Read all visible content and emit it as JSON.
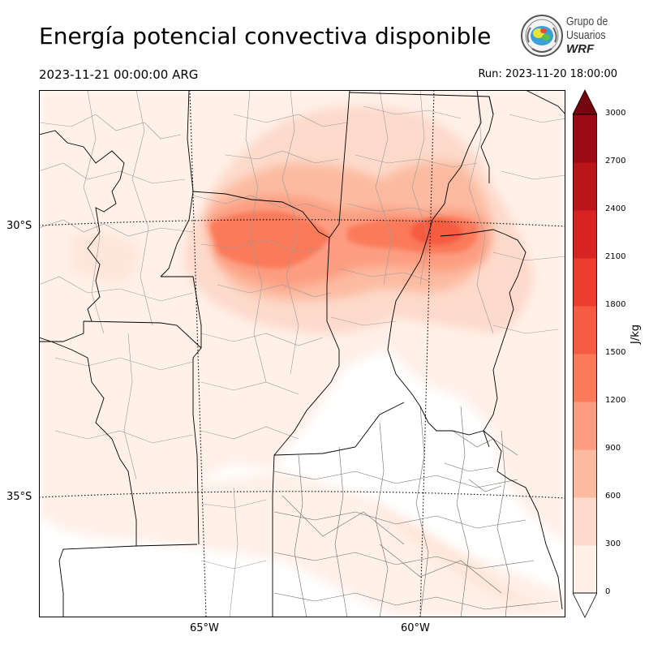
{
  "header": {
    "title": "Energía potencial convectiva disponible",
    "valid_time": "2023-11-21 00:00:00 ARG",
    "run_time": "Run: 2023-11-20 18:00:00"
  },
  "logo": {
    "line1": "Grupo de",
    "line2": "Usuarios",
    "line3": "WRF",
    "icon": "wrf-group-seal-icon"
  },
  "map": {
    "lat_labels": [
      "30°S",
      "35°S"
    ],
    "lon_labels": [
      "65°W",
      "60°W"
    ],
    "field": "CAPE",
    "colormap": "Reds",
    "colors": {
      "border": "#000000",
      "district": "#9a9a9a",
      "gridline": "#000000"
    }
  },
  "colorbar": {
    "label": "J/kg",
    "ticks": [
      "0",
      "300",
      "600",
      "900",
      "1200",
      "1500",
      "1800",
      "2100",
      "2400",
      "2700",
      "3000"
    ],
    "colors": [
      "#fff0e8",
      "#fddacb",
      "#fcbba1",
      "#fc9d81",
      "#fb7a5a",
      "#f65c41",
      "#ec3c2d",
      "#d72321",
      "#ba161a",
      "#9c0b13",
      "#740610"
    ],
    "extend": "both",
    "orientation": "vertical"
  }
}
